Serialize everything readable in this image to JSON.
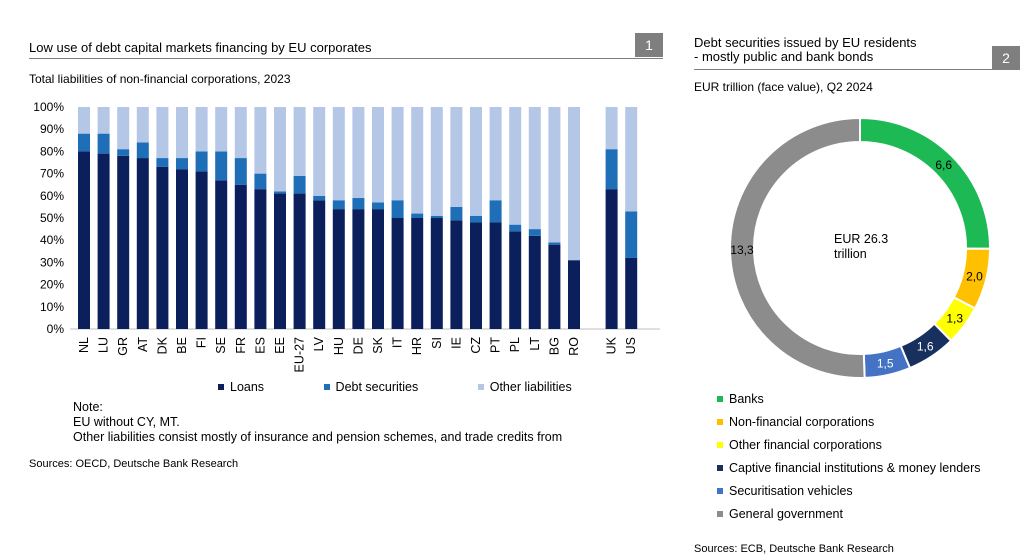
{
  "left_panel": {
    "title": "Low use of debt capital markets financing by EU corporates",
    "badge": "1",
    "subtitle": "Total liabilities of non-financial corporations, 2023",
    "legend": [
      "Loans",
      "Debt securities",
      "Other liabilities"
    ],
    "note_heading": "Note:",
    "note_lines": [
      "EU without CY, MT.",
      "Other liabilities consist mostly of insurance and pension schemes, and trade credits from"
    ],
    "source": "Sources: OECD, Deutsche Bank Research"
  },
  "right_panel": {
    "title_line1": "Debt securities issued by EU residents",
    "title_line2": "- mostly public and bank bonds",
    "badge": "2",
    "subtitle": "EUR trillion (face value), Q2 2024",
    "center_label_line1": "EUR 26.3",
    "center_label_line2": "trillion",
    "source": "Sources: ECB, Deutsche Bank Research"
  },
  "chart_data": [
    {
      "type": "bar",
      "stacked": true,
      "title": "Low use of debt capital markets financing by EU corporates",
      "subtitle": "Total liabilities of non-financial corporations, 2023",
      "categories": [
        "NL",
        "LU",
        "GR",
        "AT",
        "DK",
        "BE",
        "FI",
        "SE",
        "FR",
        "ES",
        "EE",
        "EU-27",
        "LV",
        "HU",
        "DE",
        "SK",
        "IT",
        "HR",
        "SI",
        "IE",
        "CZ",
        "PT",
        "PL",
        "LT",
        "BG",
        "RO",
        "UK",
        "US"
      ],
      "series": [
        {
          "name": "Loans",
          "color": "#0b1f5c",
          "values": [
            80,
            79,
            78,
            77,
            73,
            72,
            71,
            67,
            65,
            63,
            61,
            61,
            58,
            54,
            54,
            54,
            50,
            50,
            50,
            49,
            48,
            48,
            44,
            42,
            38,
            31,
            63,
            32
          ]
        },
        {
          "name": "Debt securities",
          "color": "#1f6fb8",
          "values": [
            8,
            9,
            3,
            7,
            4,
            5,
            9,
            13,
            12,
            7,
            1,
            8,
            2,
            4,
            5,
            3,
            8,
            2,
            1,
            6,
            3,
            10,
            3,
            3,
            1,
            0,
            18,
            21
          ]
        },
        {
          "name": "Other liabilities",
          "color": "#b4c7e7",
          "values": [
            12,
            12,
            19,
            16,
            23,
            23,
            20,
            20,
            23,
            30,
            38,
            31,
            40,
            42,
            41,
            43,
            42,
            48,
            49,
            45,
            49,
            42,
            53,
            55,
            61,
            69,
            19,
            47
          ]
        }
      ],
      "ylim": [
        0,
        100
      ],
      "yticks": [
        "0%",
        "10%",
        "20%",
        "30%",
        "40%",
        "50%",
        "60%",
        "70%",
        "80%",
        "90%",
        "100%"
      ],
      "legend_position": "bottom"
    },
    {
      "type": "pie",
      "donut": true,
      "title": "Debt securities issued by EU residents - mostly public and bank bonds",
      "subtitle": "EUR trillion (face value), Q2 2024",
      "labels": [
        "Banks",
        "Non-financial corporations",
        "Other financial corporations",
        "Captive financial institutions & money lenders",
        "Securitisation vehicles",
        "General government"
      ],
      "values": [
        6.6,
        2.0,
        1.3,
        1.6,
        1.5,
        13.3
      ],
      "value_labels": [
        "6,6",
        "2,0",
        "1,3",
        "1,6",
        "1,5",
        "13,3"
      ],
      "colors": [
        "#1db954",
        "#ffc000",
        "#ffff00",
        "#17305e",
        "#4472c4",
        "#8c8c8c"
      ],
      "total_label": "EUR 26.3 trillion",
      "legend_position": "bottom-left"
    }
  ]
}
